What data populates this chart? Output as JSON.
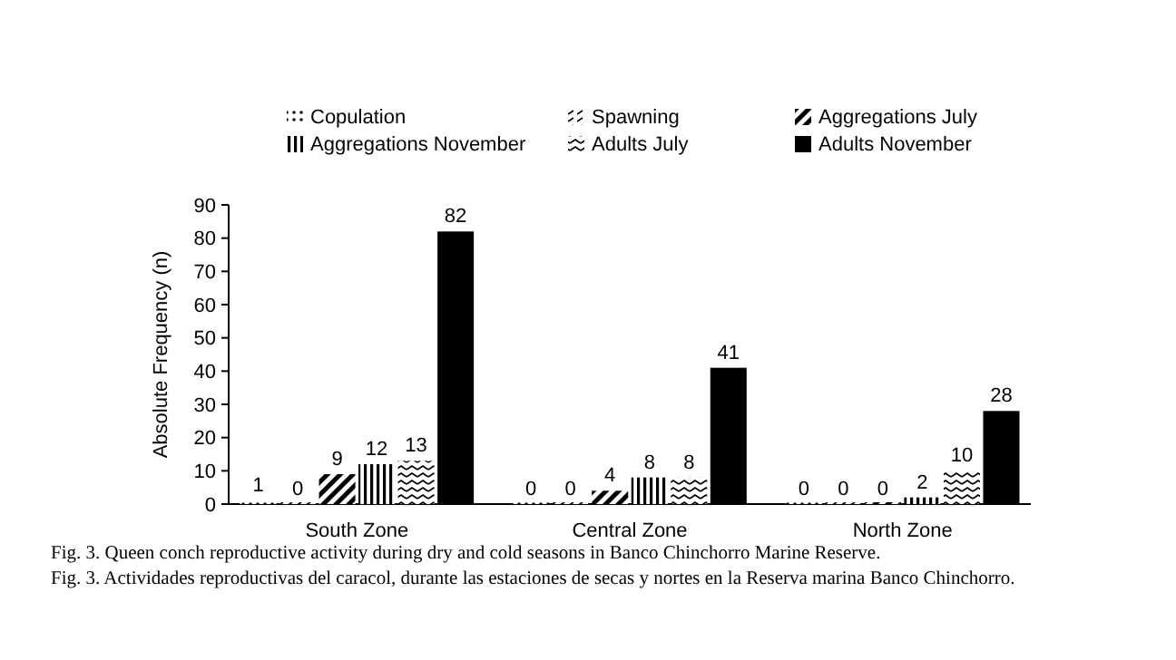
{
  "chart_data": {
    "type": "bar",
    "ylabel": "Absolute Frequency (n)",
    "categories": [
      "South Zone",
      "Central Zone",
      "North Zone"
    ],
    "series": [
      {
        "name": "Copulation",
        "color": "#000000",
        "values": [
          1,
          0,
          0
        ]
      },
      {
        "name": "Spawning",
        "color": "#000000",
        "values": [
          0,
          0,
          0
        ]
      },
      {
        "name": "Aggregations July",
        "color": "#000000",
        "values": [
          9,
          4,
          0
        ]
      },
      {
        "name": "Aggregations November",
        "color": "#000000",
        "values": [
          12,
          8,
          2
        ]
      },
      {
        "name": "Adults July",
        "color": "#000000",
        "values": [
          13,
          8,
          10
        ]
      },
      {
        "name": "Adults November",
        "color": "#000000",
        "values": [
          82,
          41,
          28
        ]
      }
    ],
    "ylim": [
      0,
      90
    ],
    "yticks": [
      0,
      10,
      20,
      30,
      40,
      50,
      60,
      70,
      80,
      90
    ],
    "data_labels": true,
    "legend": "top",
    "grid": false,
    "annotations": [
      "Fig. 3. Queen conch reproductive activity during dry and cold seasons in Banco Chinchorro Marine Reserve.",
      "Fig. 3. Actividades reproductivas del caracol, durante las estaciones de secas y nortes en la Reserva marina Banco Chinchorro."
    ]
  }
}
